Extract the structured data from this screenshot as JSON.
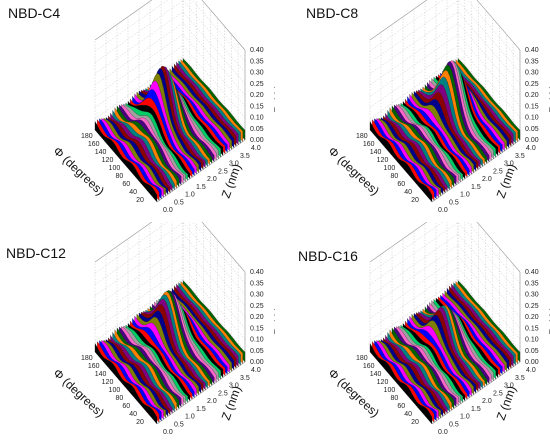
{
  "figure": {
    "panels": [
      {
        "title": "NBD-C4",
        "peak_phi": 115,
        "peak_z": 2.1,
        "peak_p": 0.22
      },
      {
        "title": "NBD-C8",
        "peak_phi": 110,
        "peak_z": 2.6,
        "peak_p": 0.22
      },
      {
        "title": "NBD-C12",
        "peak_phi": 120,
        "peak_z": 2.4,
        "peak_p": 0.18
      },
      {
        "title": "NBD-C16",
        "peak_phi": 110,
        "peak_z": 2.3,
        "peak_p": 0.14
      }
    ]
  },
  "chart_data": {
    "type": "area",
    "description_axes": {
      "xlabel": "Φ (degrees)",
      "ylabel": "Z (nm)",
      "zlabel": "P (Φ)",
      "phi_ticks": [
        "180",
        "160",
        "140",
        "120",
        "100",
        "80",
        "60",
        "40",
        "20"
      ],
      "z_ticks": [
        "0.0",
        "0.5",
        "1.0",
        "1.5",
        "2.0",
        "2.5",
        "3.0",
        "3.5",
        "4.0"
      ],
      "p_ticks": [
        "0.00",
        "0.05",
        "0.10",
        "0.15",
        "0.20",
        "0.25",
        "0.30",
        "0.35",
        "0.40"
      ],
      "phi_range": [
        0,
        180
      ],
      "z_range": [
        0,
        4
      ],
      "p_range": [
        0,
        0.4
      ]
    },
    "series_colors": [
      "#000000",
      "#ff0000",
      "#0000ff",
      "#ff00ff",
      "#808000",
      "#00008b",
      "#8b0000",
      "#800080",
      "#008080",
      "#ff8000",
      "#006400",
      "#4b0082",
      "#ff66cc",
      "#a0a0a0",
      "#00cc66"
    ],
    "grid": true
  }
}
